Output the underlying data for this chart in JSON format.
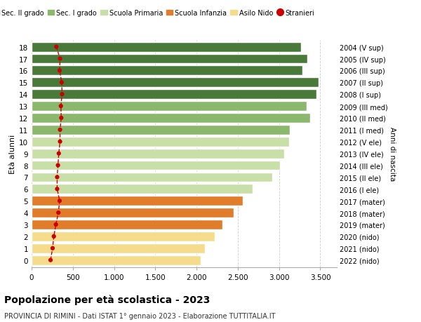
{
  "ages": [
    0,
    1,
    2,
    3,
    4,
    5,
    6,
    7,
    8,
    9,
    10,
    11,
    12,
    13,
    14,
    15,
    16,
    17,
    18
  ],
  "right_labels": [
    "2022 (nido)",
    "2021 (nido)",
    "2020 (nido)",
    "2019 (mater)",
    "2018 (mater)",
    "2017 (mater)",
    "2016 (I ele)",
    "2015 (II ele)",
    "2014 (III ele)",
    "2013 (IV ele)",
    "2012 (V ele)",
    "2011 (I med)",
    "2010 (II med)",
    "2009 (III med)",
    "2008 (I sup)",
    "2007 (II sup)",
    "2006 (III sup)",
    "2005 (IV sup)",
    "2004 (V sup)"
  ],
  "bar_values": [
    2050,
    2100,
    2220,
    2310,
    2450,
    2560,
    2680,
    2920,
    3010,
    3060,
    3120,
    3130,
    3380,
    3330,
    3450,
    3480,
    3280,
    3340,
    3270
  ],
  "stranieri_values": [
    230,
    255,
    270,
    295,
    325,
    340,
    310,
    310,
    320,
    330,
    345,
    345,
    360,
    355,
    370,
    365,
    340,
    345,
    300
  ],
  "bar_colors": [
    "#f5dc8c",
    "#f5dc8c",
    "#f5dc8c",
    "#e07c2a",
    "#e07c2a",
    "#e07c2a",
    "#c8dfa8",
    "#c8dfa8",
    "#c8dfa8",
    "#c8dfa8",
    "#c8dfa8",
    "#8cb86e",
    "#8cb86e",
    "#8cb86e",
    "#4a7a3a",
    "#4a7a3a",
    "#4a7a3a",
    "#4a7a3a",
    "#4a7a3a"
  ],
  "legend_labels": [
    "Sec. II grado",
    "Sec. I grado",
    "Scuola Primaria",
    "Scuola Infanzia",
    "Asilo Nido",
    "Stranieri"
  ],
  "legend_colors": [
    "#4a7a3a",
    "#8cb86e",
    "#c8dfa8",
    "#e07c2a",
    "#f5dc8c",
    "#cc0000"
  ],
  "ylabel": "Età alunni",
  "right_ylabel": "Anni di nascita",
  "title": "Popolazione per età scolastica - 2023",
  "subtitle": "PROVINCIA DI RIMINI - Dati ISTAT 1° gennaio 2023 - Elaborazione TUTTITALIA.IT",
  "xlim": [
    0,
    3700
  ],
  "background_color": "#ffffff",
  "grid_color": "#cccccc",
  "stranieri_color": "#cc0000",
  "bar_height": 0.82,
  "xticks": [
    0,
    500,
    1000,
    1500,
    2000,
    2500,
    3000,
    3500
  ]
}
